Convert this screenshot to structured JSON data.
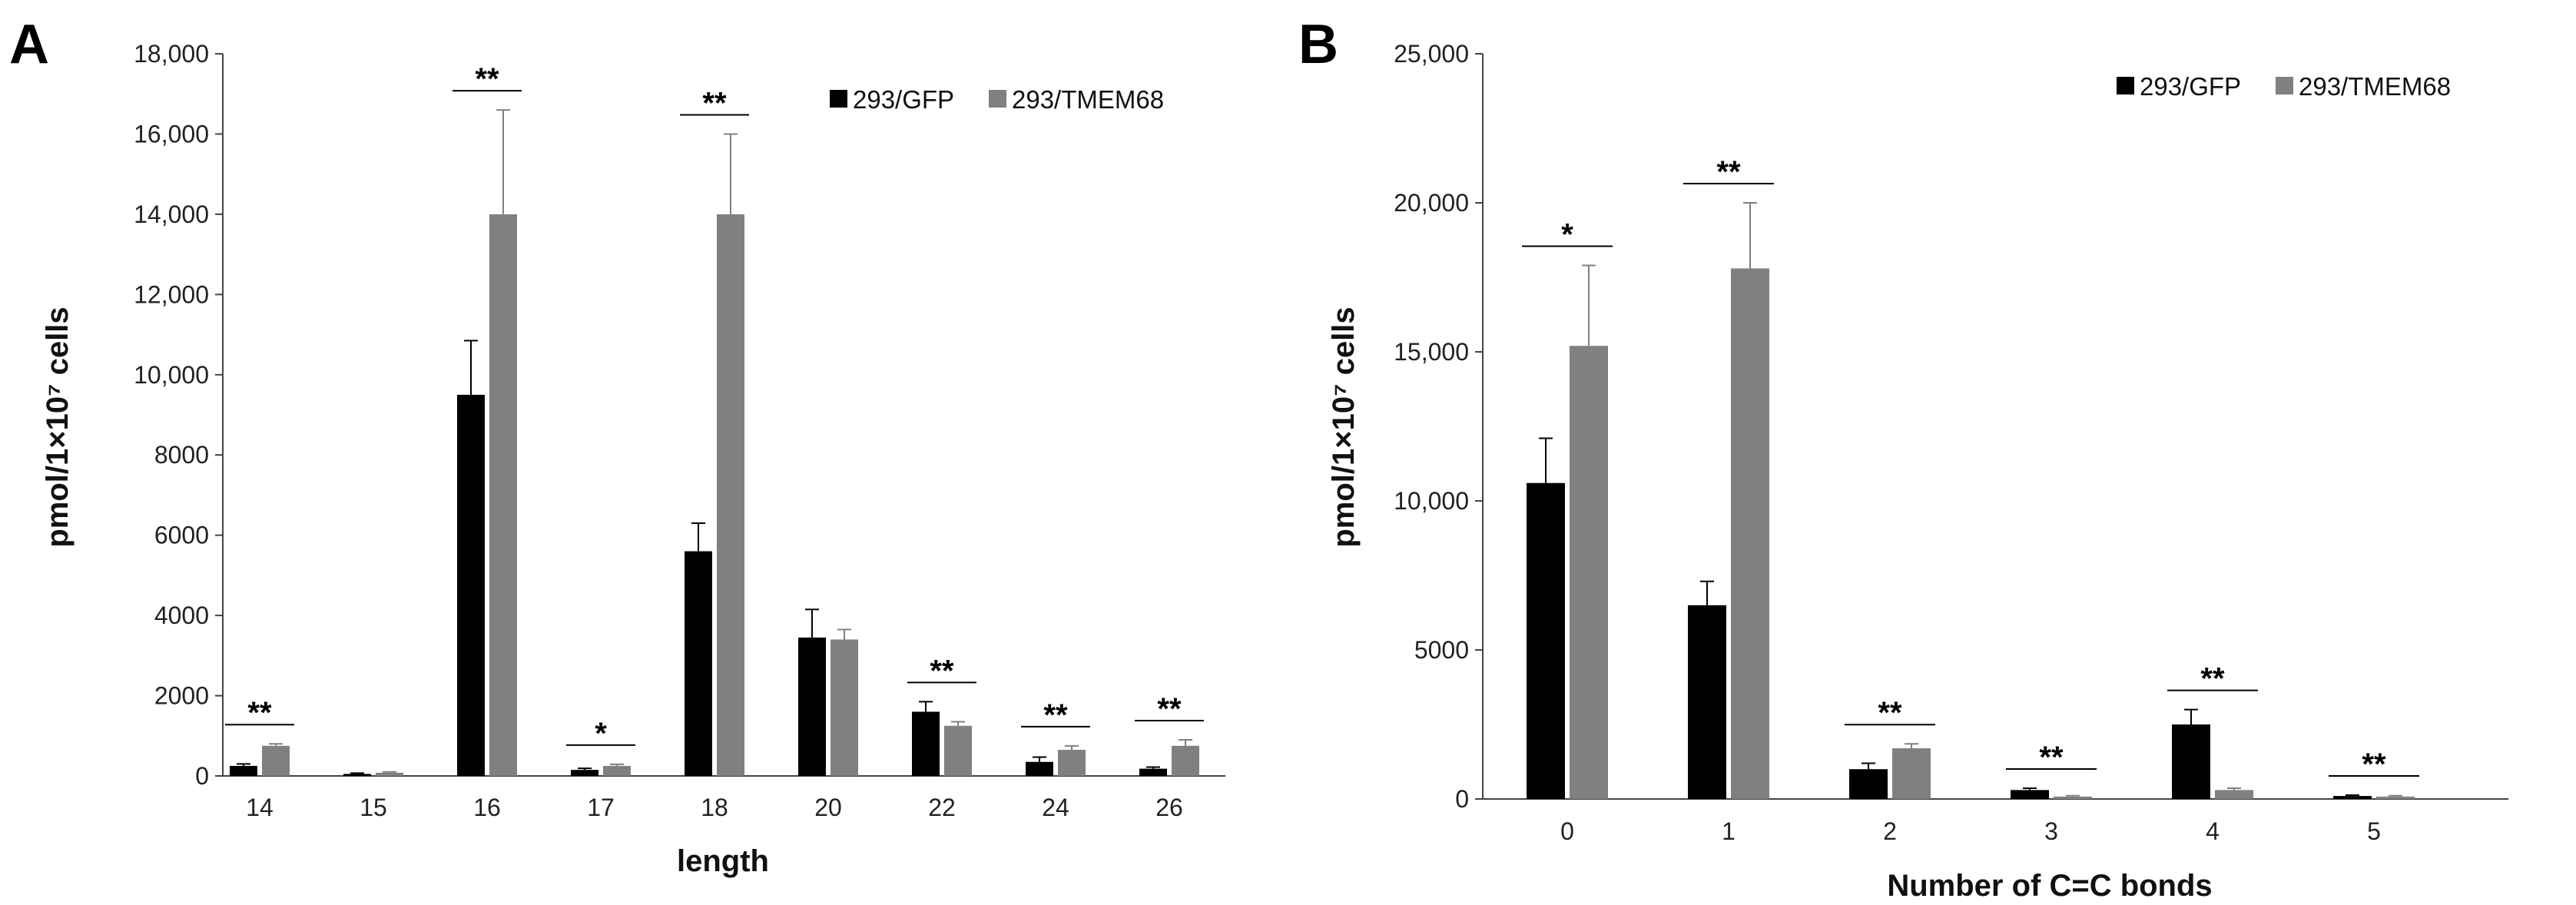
{
  "chart_data": [
    {
      "panel": "A",
      "type": "bar",
      "xlabel": "length",
      "ylabel": "pmol/1×10⁷ cells",
      "ylim": [
        0,
        18000
      ],
      "yticks": [
        0,
        2000,
        4000,
        6000,
        8000,
        10000,
        12000,
        14000,
        16000,
        18000
      ],
      "ytick_labels": [
        "0",
        "2000",
        "4000",
        "6000",
        "8000",
        "10,000",
        "12,000",
        "14,000",
        "16,000",
        "18,000"
      ],
      "categories": [
        "14",
        "15",
        "16",
        "17",
        "18",
        "20",
        "22",
        "24",
        "26"
      ],
      "legend_position": "top-right",
      "series": [
        {
          "name": "293/GFP",
          "color": "#000000",
          "values": [
            250,
            50,
            9500,
            150,
            5600,
            3450,
            1600,
            350,
            180
          ],
          "errors": [
            50,
            20,
            1350,
            40,
            700,
            700,
            250,
            120,
            40
          ]
        },
        {
          "name": "293/TMEM68",
          "color": "#808080",
          "values": [
            750,
            80,
            14000,
            250,
            14000,
            3400,
            1250,
            650,
            750
          ],
          "errors": [
            50,
            20,
            2600,
            40,
            2000,
            250,
            100,
            100,
            150
          ]
        }
      ],
      "significance": [
        "**",
        "",
        "**",
        "*",
        "**",
        "",
        "**",
        "**",
        "**"
      ]
    },
    {
      "panel": "B",
      "type": "bar",
      "xlabel": "Number of C=C bonds",
      "ylabel": "pmol/1×10⁷ cells",
      "ylim": [
        0,
        25000
      ],
      "yticks": [
        0,
        5000,
        10000,
        15000,
        20000,
        25000
      ],
      "ytick_labels": [
        "0",
        "5000",
        "10,000",
        "15,000",
        "20,000",
        "25,000"
      ],
      "categories": [
        "0",
        "1",
        "2",
        "3",
        "4",
        "5"
      ],
      "legend_position": "top-right",
      "series": [
        {
          "name": "293/GFP",
          "color": "#000000",
          "values": [
            10600,
            6500,
            1000,
            300,
            2500,
            100
          ],
          "errors": [
            1500,
            800,
            200,
            60,
            500,
            30
          ]
        },
        {
          "name": "293/TMEM68",
          "color": "#808080",
          "values": [
            15200,
            17800,
            1700,
            80,
            300,
            80
          ],
          "errors": [
            2700,
            2200,
            150,
            30,
            60,
            30
          ]
        }
      ],
      "significance": [
        "*",
        "**",
        "**",
        "**",
        "**",
        "**"
      ]
    }
  ]
}
